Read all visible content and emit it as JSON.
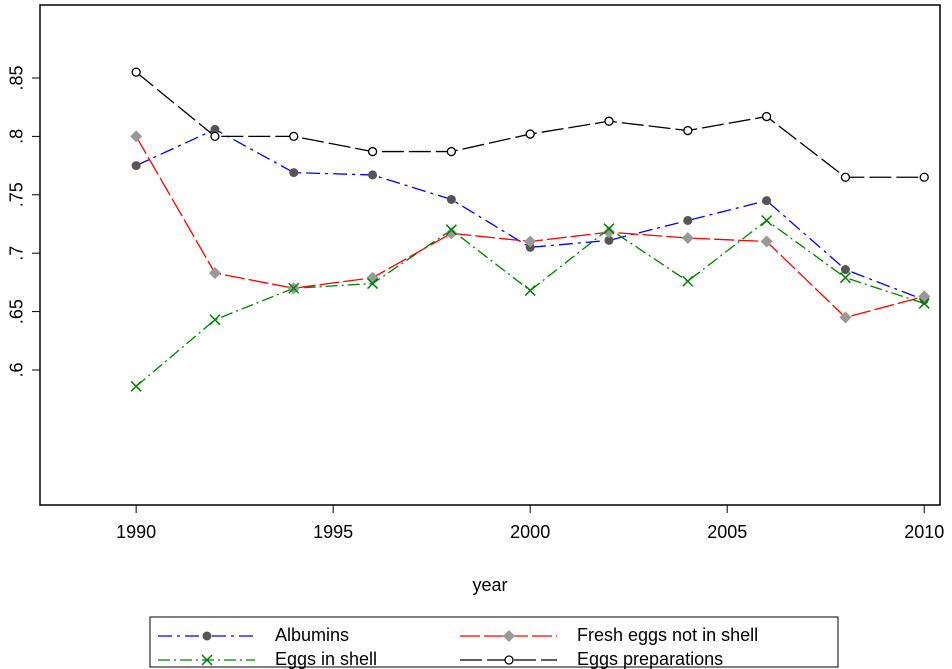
{
  "chart_data": {
    "type": "line",
    "x_label": "year",
    "x": [
      1990,
      1992,
      1994,
      1996,
      1998,
      2000,
      2002,
      2004,
      2006,
      2008,
      2010
    ],
    "series": [
      {
        "name": "Albumins",
        "color": "#0000ff",
        "dash": "14 5 3 5",
        "marker": "filled-circle",
        "marker_color": "#555555",
        "values": [
          0.775,
          0.806,
          0.769,
          0.767,
          0.746,
          0.705,
          0.711,
          0.728,
          0.745,
          0.686,
          0.66
        ]
      },
      {
        "name": "Fresh eggs not in shell",
        "color": "#ff0000",
        "dash": "20 4",
        "marker": "diamond",
        "marker_color": "#999999",
        "values": [
          0.8,
          0.683,
          0.67,
          0.679,
          0.717,
          0.71,
          0.718,
          0.713,
          0.71,
          0.645,
          0.663
        ]
      },
      {
        "name": "Eggs in shell",
        "color": "#008000",
        "dash": "12 4 2 4",
        "marker": "x",
        "marker_color": "#008000",
        "values": [
          0.586,
          0.643,
          0.67,
          0.674,
          0.72,
          0.668,
          0.721,
          0.676,
          0.728,
          0.679,
          0.657
        ]
      },
      {
        "name": "Eggs preparations",
        "color": "#000000",
        "dash": "22 5",
        "marker": "hollow-circle",
        "marker_color": "#000000",
        "values": [
          0.855,
          0.8,
          0.8,
          0.787,
          0.787,
          0.802,
          0.813,
          0.805,
          0.817,
          0.765,
          0.765
        ]
      }
    ],
    "xlim": [
      1987.56,
      2010.4
    ],
    "ylim": [
      0.4844,
      0.9125
    ],
    "xticks": [
      1990,
      1995,
      2000,
      2005,
      2010
    ],
    "yticks": [
      {
        "value": 0.6,
        "label": ".6"
      },
      {
        "value": 0.65,
        "label": ".65"
      },
      {
        "value": 0.7,
        "label": ".7"
      },
      {
        "value": 0.75,
        "label": ".75"
      },
      {
        "value": 0.8,
        "label": ".8"
      },
      {
        "value": 0.85,
        "label": ".85"
      }
    ],
    "grid": false,
    "legend": "bottom"
  }
}
